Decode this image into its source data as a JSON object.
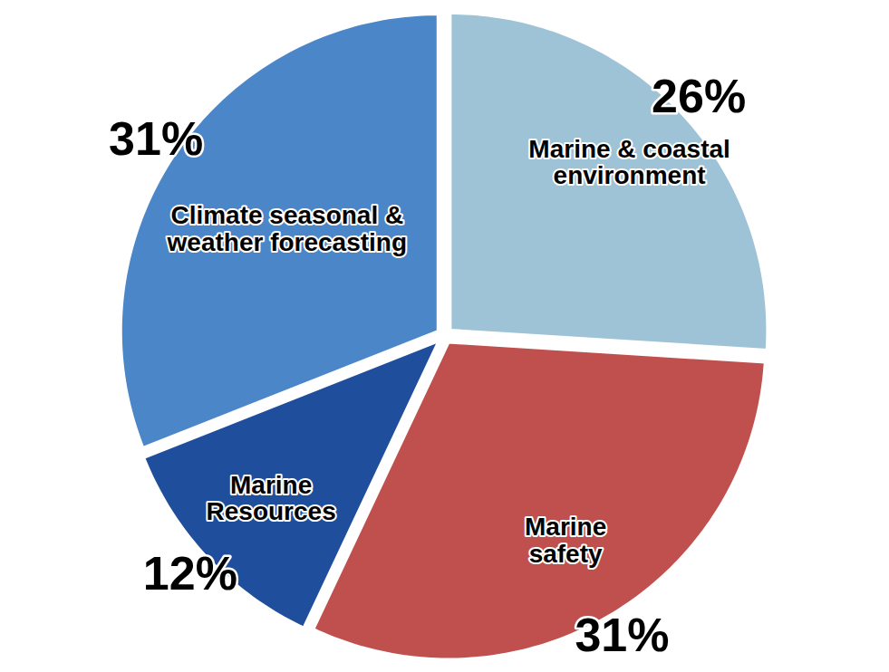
{
  "chart_data": {
    "type": "pie",
    "categories": [
      "Marine & coastal environment",
      "Marine safety",
      "Marine Resources",
      "Climate seasonal & weather forecasting"
    ],
    "values": [
      26,
      31,
      12,
      31
    ],
    "value_labels": [
      "26%",
      "31%",
      "12%",
      "31%"
    ],
    "colors": [
      "#9ec3d6",
      "#c0504d",
      "#1f4e9c",
      "#4a86c8"
    ],
    "data_labels": true
  }
}
